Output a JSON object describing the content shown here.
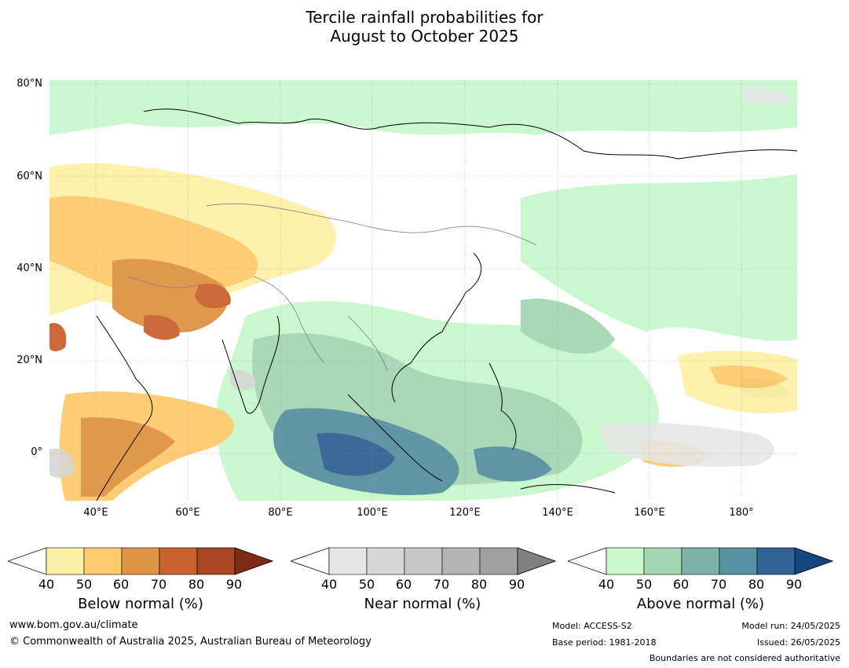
{
  "title_line1": "Tercile rainfall probabilities for",
  "title_line2": "August to October 2025",
  "latitude_labels": [
    "80°N",
    "60°N",
    "40°N",
    "20°N",
    "0°"
  ],
  "longitude_labels": [
    "40°E",
    "60°E",
    "80°E",
    "100°E",
    "120°E",
    "140°E",
    "160°E",
    "180°"
  ],
  "colorbars": [
    {
      "title": "Below normal (%)",
      "ticks": [
        "40",
        "50",
        "60",
        "70",
        "80",
        "90"
      ],
      "colors": [
        "#fff0a8",
        "#fdcb6e",
        "#df9344",
        "#c9622f",
        "#a94624",
        "#7f2a14"
      ]
    },
    {
      "title": "Near normal (%)",
      "ticks": [
        "40",
        "50",
        "60",
        "70",
        "80",
        "90"
      ],
      "colors": [
        "#e6e6e6",
        "#d6d6d6",
        "#c7c7c7",
        "#b4b4b4",
        "#a0a0a0",
        "#808080"
      ]
    },
    {
      "title": "Above normal (%)",
      "ticks": [
        "40",
        "50",
        "60",
        "70",
        "80",
        "90"
      ],
      "colors": [
        "#c8f8cc",
        "#a4d6b4",
        "#7cb4a8",
        "#5891a0",
        "#336294",
        "#14457e"
      ]
    }
  ],
  "footer": {
    "website": "www.bom.gov.au/climate",
    "copyright": "© Commonwealth of Australia 2025, Australian Bureau of Meteorology",
    "model": "Model: ACCESS-S2",
    "base_period": "Base period: 1981-2018",
    "model_run": "Model run: 24/05/2025",
    "issued": "Issued: 26/05/2025",
    "boundaries_note": "Boundaries are not considered authoritative"
  }
}
